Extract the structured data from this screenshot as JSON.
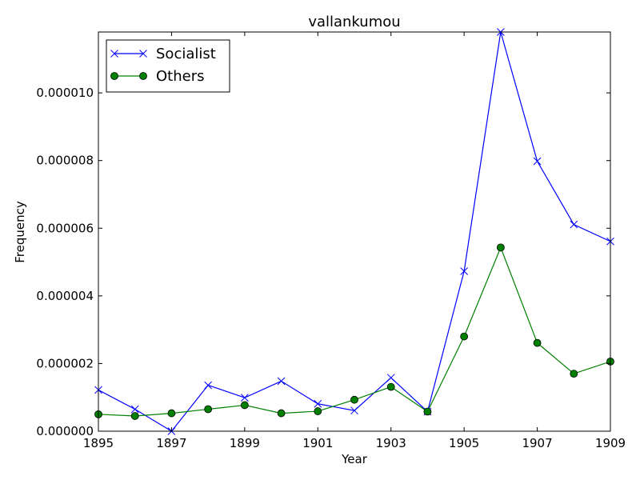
{
  "chart_data": {
    "type": "line",
    "title": "vallankumou",
    "xlabel": "Year",
    "ylabel": "Frequency",
    "x": [
      1895,
      1896,
      1897,
      1898,
      1899,
      1900,
      1901,
      1902,
      1903,
      1904,
      1905,
      1906,
      1907,
      1908,
      1909
    ],
    "xlim": [
      1895,
      1909
    ],
    "ylim": [
      0,
      1.18e-05
    ],
    "x_ticks": [
      "1895",
      "1897",
      "1899",
      "1901",
      "1903",
      "1905",
      "1907",
      "1909"
    ],
    "y_ticks": [
      "0.000000",
      "0.000002",
      "0.000004",
      "0.000006",
      "0.000008",
      "0.000010"
    ],
    "legend_position": "top-left",
    "grid": false,
    "series": [
      {
        "name": "Socialist",
        "color": "#0000ff",
        "marker": "x",
        "values": [
          1.22e-06,
          6.5e-07,
          0.0,
          1.36e-06,
          9.9e-07,
          1.48e-06,
          8.1e-07,
          6.1e-07,
          1.58e-06,
          5.8e-07,
          4.73e-06,
          1.18e-05,
          7.98e-06,
          6.11e-06,
          5.61e-06
        ]
      },
      {
        "name": "Others",
        "color": "#008000",
        "marker": "o",
        "values": [
          5e-07,
          4.5e-07,
          5.3e-07,
          6.5e-07,
          7.7e-07,
          5.3e-07,
          5.9e-07,
          9.3e-07,
          1.31e-06,
          5.8e-07,
          2.8e-06,
          5.43e-06,
          2.61e-06,
          1.7e-06,
          2.06e-06
        ]
      }
    ]
  }
}
